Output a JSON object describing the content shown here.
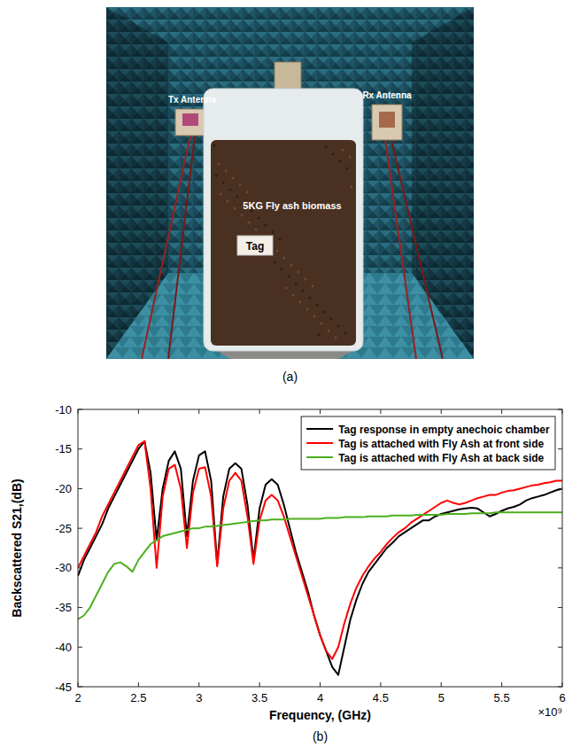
{
  "photo": {
    "caption": "(a)",
    "tx_label": "Tx Antenna",
    "rx_label": "Rx Antenna",
    "bag_label": "5KG Fly ash biomass",
    "tag_label": "Tag"
  },
  "chart_data": {
    "type": "line",
    "caption": "(b)",
    "xlabel": "Frequency, (GHz)",
    "ylabel": "Backscattered S21,(dB)",
    "annotation": "×10⁹",
    "x": [
      2,
      2.05,
      2.1,
      2.15,
      2.2,
      2.25,
      2.3,
      2.35,
      2.4,
      2.45,
      2.5,
      2.55,
      2.6,
      2.65,
      2.7,
      2.75,
      2.8,
      2.85,
      2.9,
      2.95,
      3,
      3.05,
      3.1,
      3.15,
      3.2,
      3.25,
      3.3,
      3.35,
      3.4,
      3.45,
      3.5,
      3.55,
      3.6,
      3.65,
      3.7,
      3.75,
      3.8,
      3.85,
      3.9,
      3.95,
      4,
      4.05,
      4.1,
      4.15,
      4.2,
      4.25,
      4.3,
      4.35,
      4.4,
      4.45,
      4.5,
      4.55,
      4.6,
      4.65,
      4.7,
      4.75,
      4.8,
      4.85,
      4.9,
      4.95,
      5,
      5.05,
      5.1,
      5.15,
      5.2,
      5.25,
      5.3,
      5.35,
      5.4,
      5.45,
      5.5,
      5.55,
      5.6,
      5.65,
      5.7,
      5.75,
      5.8,
      5.85,
      5.9,
      5.95,
      6
    ],
    "series": [
      {
        "name": "Tag response in empty anechoic chamber",
        "color": "#000000",
        "values": [
          -31,
          -29,
          -27.5,
          -26,
          -24.5,
          -22.5,
          -21,
          -19.5,
          -18,
          -16.5,
          -15,
          -14,
          -18,
          -26.5,
          -20,
          -16.5,
          -15.3,
          -17.5,
          -26,
          -19,
          -15.8,
          -15.3,
          -19,
          -29.5,
          -21,
          -17.5,
          -16.8,
          -17.5,
          -22,
          -29,
          -22.5,
          -19.5,
          -18.8,
          -19.5,
          -22,
          -25,
          -28,
          -30.5,
          -33,
          -36,
          -38.5,
          -40.5,
          -42.5,
          -43.5,
          -40,
          -36.5,
          -34,
          -32,
          -30.5,
          -29.5,
          -28.5,
          -27.5,
          -26.8,
          -26,
          -25.5,
          -25,
          -24.5,
          -24,
          -24,
          -23.5,
          -23.2,
          -23,
          -22.8,
          -22.6,
          -22.5,
          -22.4,
          -22.5,
          -23,
          -23.5,
          -23.2,
          -22.8,
          -22.5,
          -22.3,
          -22,
          -21.5,
          -21.2,
          -21,
          -20.8,
          -20.5,
          -20.2,
          -20
        ]
      },
      {
        "name": "Tag is attached with Fly Ash at front side",
        "color": "#ff0000",
        "values": [
          -30,
          -28.5,
          -27,
          -25.5,
          -23.5,
          -22,
          -20.5,
          -19,
          -17.5,
          -16,
          -14.5,
          -14,
          -20,
          -30,
          -21,
          -17.5,
          -17,
          -20,
          -27.5,
          -20.5,
          -17.5,
          -17.3,
          -21,
          -29.8,
          -22.5,
          -19,
          -18,
          -19,
          -23.5,
          -29.5,
          -24,
          -21.5,
          -20.8,
          -21.5,
          -23.5,
          -26,
          -28.5,
          -31,
          -33.5,
          -36,
          -38.5,
          -40.5,
          -41.5,
          -40,
          -37,
          -34.5,
          -32.5,
          -31,
          -29.8,
          -28.8,
          -28,
          -27,
          -26.2,
          -25.5,
          -25,
          -24.3,
          -23.8,
          -23.3,
          -22.8,
          -22.3,
          -21.8,
          -21.5,
          -21.8,
          -22,
          -21.8,
          -21.5,
          -21.2,
          -21,
          -20.8,
          -20.8,
          -20.5,
          -20.3,
          -20.2,
          -20,
          -19.8,
          -19.6,
          -19.5,
          -19.3,
          -19.2,
          -19,
          -19
        ]
      },
      {
        "name": "Tag is attached with Fly Ash at back side",
        "color": "#4caf1f",
        "values": [
          -36.5,
          -36,
          -35,
          -33.5,
          -32,
          -30.5,
          -29.5,
          -29.3,
          -29.8,
          -30.5,
          -29,
          -28,
          -27,
          -26.5,
          -26,
          -25.8,
          -25.6,
          -25.4,
          -25.2,
          -25,
          -25,
          -24.8,
          -24.8,
          -24.7,
          -24.6,
          -24.5,
          -24.4,
          -24.3,
          -24.2,
          -24.1,
          -24,
          -24,
          -23.9,
          -23.9,
          -23.9,
          -23.8,
          -23.8,
          -23.8,
          -23.8,
          -23.8,
          -23.8,
          -23.7,
          -23.7,
          -23.7,
          -23.6,
          -23.6,
          -23.6,
          -23.6,
          -23.5,
          -23.5,
          -23.5,
          -23.5,
          -23.4,
          -23.4,
          -23.4,
          -23.4,
          -23.3,
          -23.3,
          -23.3,
          -23.3,
          -23.3,
          -23.2,
          -23.2,
          -23.2,
          -23.2,
          -23.1,
          -23.1,
          -23.1,
          -23.1,
          -23,
          -23,
          -23,
          -23,
          -23,
          -23,
          -23,
          -23,
          -23,
          -23,
          -23,
          -23
        ]
      }
    ],
    "xlim": [
      2,
      6
    ],
    "xticks": [
      2,
      2.5,
      3,
      3.5,
      4,
      4.5,
      5,
      5.5,
      6
    ],
    "ylim": [
      -45,
      -10
    ],
    "yticks": [
      -45,
      -40,
      -35,
      -30,
      -25,
      -20,
      -15,
      -10
    ],
    "grid": false,
    "legend": "upper right"
  }
}
